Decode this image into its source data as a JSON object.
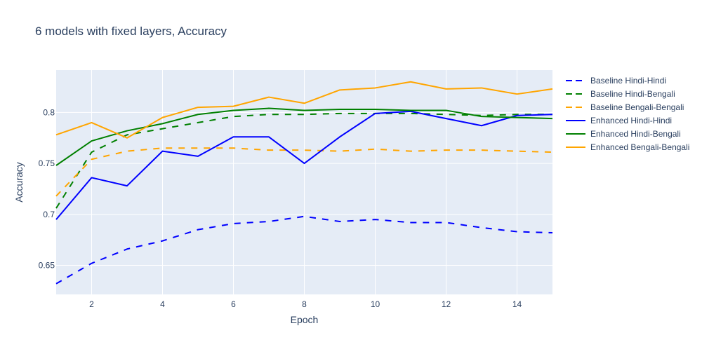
{
  "chart_data": {
    "type": "line",
    "title": "6 models with fixed layers, Accuracy",
    "xlabel": "Epoch",
    "ylabel": "Accuracy",
    "x": [
      1,
      2,
      3,
      4,
      5,
      6,
      7,
      8,
      9,
      10,
      11,
      12,
      13,
      14,
      15
    ],
    "xlim": [
      1,
      15
    ],
    "ylim": [
      0.6215,
      0.8415
    ],
    "xticks": [
      2,
      4,
      6,
      8,
      10,
      12,
      14
    ],
    "xtick_labels": [
      "2",
      "4",
      "6",
      "8",
      "10",
      "12",
      "14"
    ],
    "yticks": [
      0.65,
      0.7,
      0.75,
      0.8
    ],
    "ytick_labels": [
      "0.65",
      "0.7",
      "0.75",
      "0.8"
    ],
    "grid": true,
    "legend_position": "right",
    "plot_background": "#e5ecf6",
    "series": [
      {
        "name": "Baseline Hindi-Hindi",
        "color": "#0000ff",
        "dash": "dash",
        "values": [
          0.632,
          0.652,
          0.666,
          0.674,
          0.685,
          0.691,
          0.693,
          0.698,
          0.693,
          0.695,
          0.692,
          0.692,
          0.687,
          0.683,
          0.682
        ]
      },
      {
        "name": "Baseline Hindi-Bengali",
        "color": "#008000",
        "dash": "dash",
        "values": [
          0.706,
          0.761,
          0.778,
          0.784,
          0.79,
          0.796,
          0.798,
          0.798,
          0.799,
          0.799,
          0.799,
          0.798,
          0.797,
          0.798,
          0.798
        ]
      },
      {
        "name": "Baseline Bengali-Bengali",
        "color": "#ffa500",
        "dash": "dash",
        "values": [
          0.718,
          0.754,
          0.762,
          0.765,
          0.765,
          0.765,
          0.763,
          0.763,
          0.762,
          0.764,
          0.762,
          0.763,
          0.763,
          0.762,
          0.761
        ]
      },
      {
        "name": "Enhanced Hindi-Hindi",
        "color": "#0000ff",
        "dash": "solid",
        "values": [
          0.695,
          0.736,
          0.728,
          0.762,
          0.757,
          0.776,
          0.776,
          0.75,
          0.776,
          0.799,
          0.801,
          0.794,
          0.787,
          0.797,
          0.798
        ]
      },
      {
        "name": "Enhanced Hindi-Bengali",
        "color": "#008000",
        "dash": "solid",
        "values": [
          0.748,
          0.772,
          0.782,
          0.789,
          0.798,
          0.802,
          0.804,
          0.802,
          0.803,
          0.803,
          0.802,
          0.802,
          0.796,
          0.795,
          0.794
        ]
      },
      {
        "name": "Enhanced Bengali-Bengali",
        "color": "#ffa500",
        "dash": "solid",
        "values": [
          0.778,
          0.79,
          0.775,
          0.795,
          0.805,
          0.806,
          0.815,
          0.809,
          0.822,
          0.824,
          0.83,
          0.823,
          0.824,
          0.818,
          0.823
        ]
      }
    ]
  }
}
